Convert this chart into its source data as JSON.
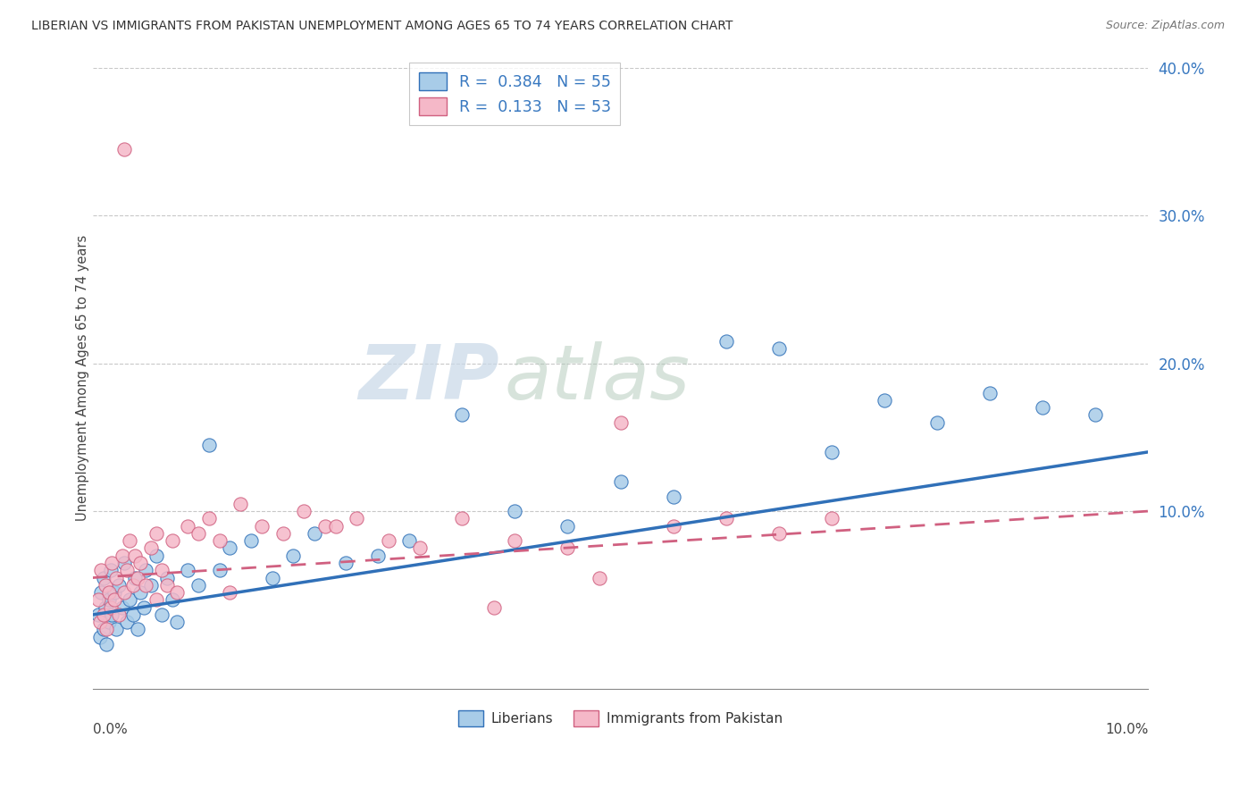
{
  "title": "LIBERIAN VS IMMIGRANTS FROM PAKISTAN UNEMPLOYMENT AMONG AGES 65 TO 74 YEARS CORRELATION CHART",
  "source": "Source: ZipAtlas.com",
  "ylabel": "Unemployment Among Ages 65 to 74 years",
  "xlim": [
    0.0,
    10.0
  ],
  "ylim": [
    -2.0,
    40.0
  ],
  "yticks": [
    0.0,
    10.0,
    20.0,
    30.0,
    40.0
  ],
  "ytick_labels": [
    "",
    "10.0%",
    "20.0%",
    "30.0%",
    "40.0%"
  ],
  "watermark_zip": "ZIP",
  "watermark_atlas": "atlas",
  "series1_color": "#a8cce8",
  "series2_color": "#f5b8c8",
  "series1_label": "Liberians",
  "series2_label": "Immigrants from Pakistan",
  "trend1_color": "#3070b8",
  "trend2_color": "#d06080",
  "R1": 0.384,
  "N1": 55,
  "R2": 0.133,
  "N2": 53,
  "blue_x": [
    0.05,
    0.07,
    0.08,
    0.1,
    0.1,
    0.12,
    0.13,
    0.15,
    0.15,
    0.17,
    0.18,
    0.2,
    0.22,
    0.25,
    0.28,
    0.3,
    0.32,
    0.35,
    0.38,
    0.4,
    0.42,
    0.45,
    0.48,
    0.5,
    0.55,
    0.6,
    0.65,
    0.7,
    0.75,
    0.8,
    0.9,
    1.0,
    1.1,
    1.2,
    1.3,
    1.5,
    1.7,
    1.9,
    2.1,
    2.4,
    2.7,
    3.0,
    3.5,
    4.0,
    4.5,
    5.0,
    5.5,
    6.0,
    6.5,
    7.0,
    7.5,
    8.0,
    8.5,
    9.0,
    9.5
  ],
  "blue_y": [
    3.0,
    1.5,
    4.5,
    2.0,
    5.5,
    3.5,
    1.0,
    4.0,
    2.5,
    6.0,
    3.0,
    4.5,
    2.0,
    5.0,
    3.5,
    6.5,
    2.5,
    4.0,
    3.0,
    5.5,
    2.0,
    4.5,
    3.5,
    6.0,
    5.0,
    7.0,
    3.0,
    5.5,
    4.0,
    2.5,
    6.0,
    5.0,
    14.5,
    6.0,
    7.5,
    8.0,
    5.5,
    7.0,
    8.5,
    6.5,
    7.0,
    8.0,
    16.5,
    10.0,
    9.0,
    12.0,
    11.0,
    21.5,
    21.0,
    14.0,
    17.5,
    16.0,
    18.0,
    17.0,
    16.5
  ],
  "pink_x": [
    0.05,
    0.07,
    0.08,
    0.1,
    0.12,
    0.13,
    0.15,
    0.17,
    0.18,
    0.2,
    0.22,
    0.25,
    0.28,
    0.3,
    0.32,
    0.35,
    0.38,
    0.4,
    0.42,
    0.45,
    0.5,
    0.55,
    0.6,
    0.65,
    0.7,
    0.75,
    0.8,
    0.9,
    1.0,
    1.1,
    1.2,
    1.4,
    1.6,
    1.8,
    2.0,
    2.2,
    2.5,
    2.8,
    3.1,
    3.5,
    4.0,
    4.5,
    5.0,
    5.5,
    6.0,
    6.5,
    7.0,
    3.8,
    4.8,
    2.3,
    1.3,
    0.6,
    0.3
  ],
  "pink_y": [
    4.0,
    2.5,
    6.0,
    3.0,
    5.0,
    2.0,
    4.5,
    3.5,
    6.5,
    4.0,
    5.5,
    3.0,
    7.0,
    4.5,
    6.0,
    8.0,
    5.0,
    7.0,
    5.5,
    6.5,
    5.0,
    7.5,
    8.5,
    6.0,
    5.0,
    8.0,
    4.5,
    9.0,
    8.5,
    9.5,
    8.0,
    10.5,
    9.0,
    8.5,
    10.0,
    9.0,
    9.5,
    8.0,
    7.5,
    9.5,
    8.0,
    7.5,
    16.0,
    9.0,
    9.5,
    8.5,
    9.5,
    3.5,
    5.5,
    9.0,
    4.5,
    4.0,
    34.5
  ],
  "trend1_x0": 0.0,
  "trend1_y0": 3.0,
  "trend1_x1": 10.0,
  "trend1_y1": 14.0,
  "trend2_x0": 0.0,
  "trend2_y0": 5.5,
  "trend2_x1": 10.0,
  "trend2_y1": 10.0
}
